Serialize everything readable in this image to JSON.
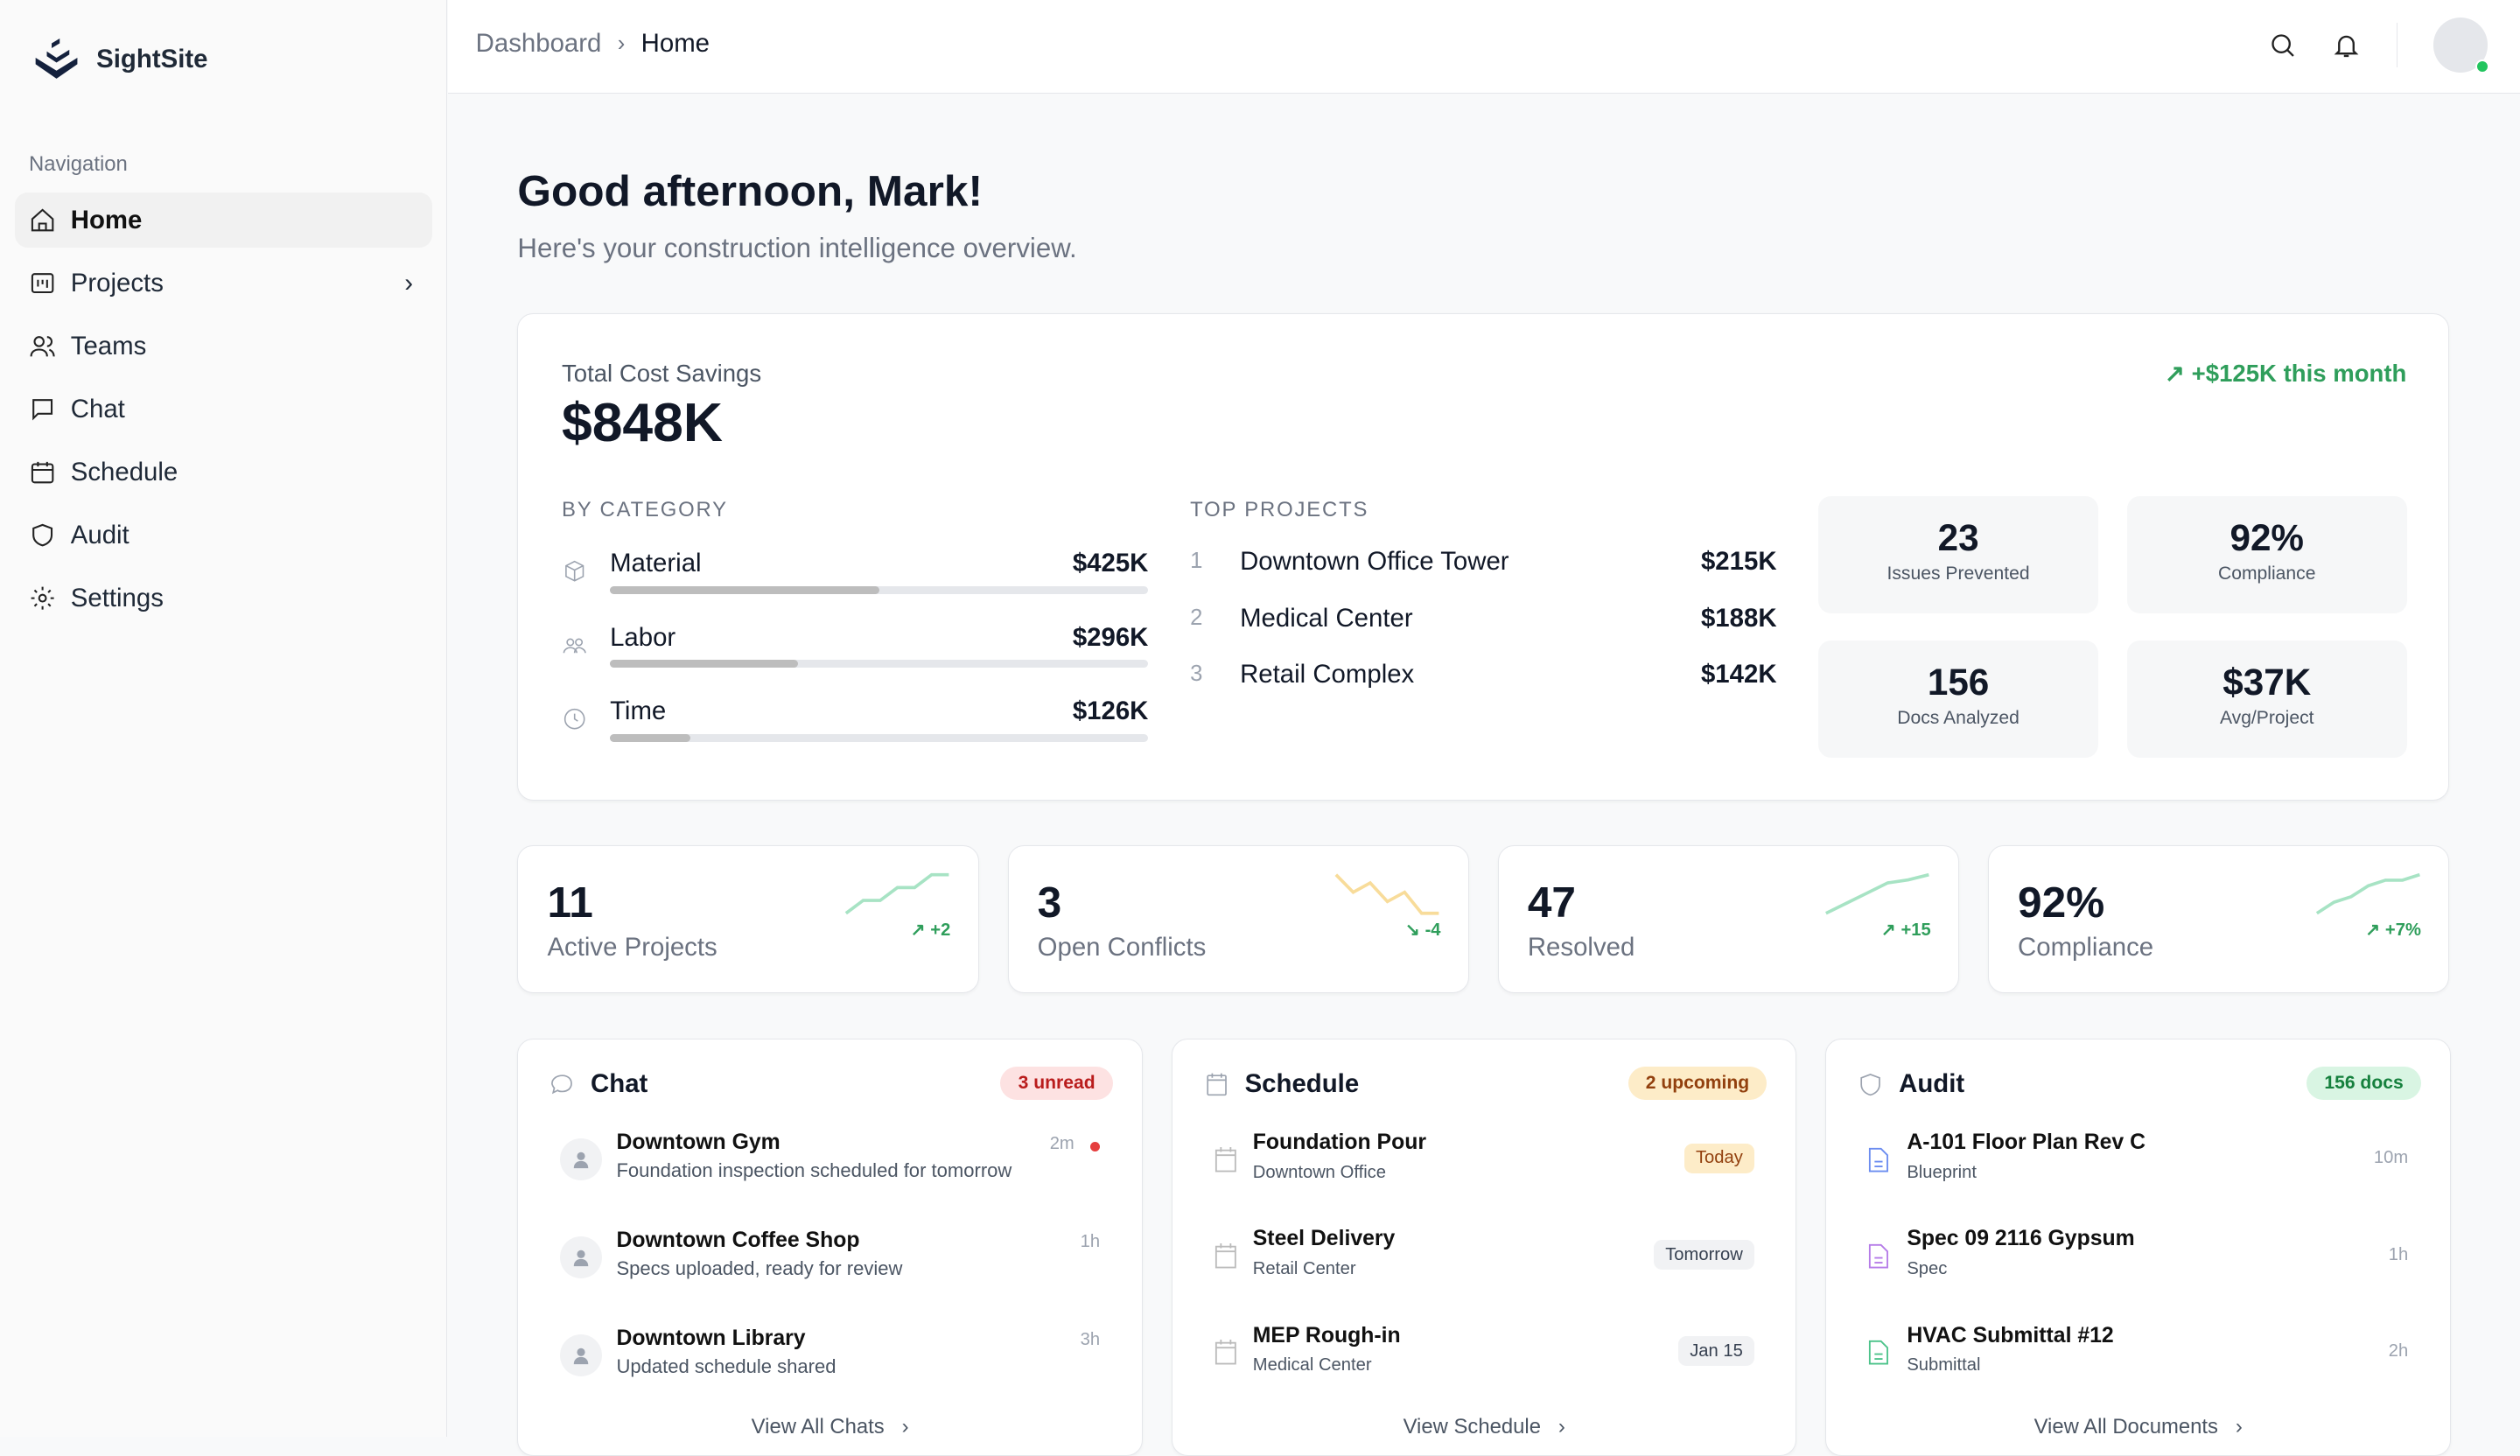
{
  "app": {
    "name": "SightSite"
  },
  "sidebar": {
    "label": "Navigation",
    "items": [
      {
        "label": "Home",
        "icon": "home-icon"
      },
      {
        "label": "Projects",
        "icon": "projects-icon"
      },
      {
        "label": "Teams",
        "icon": "users-icon"
      },
      {
        "label": "Chat",
        "icon": "chat-icon"
      },
      {
        "label": "Schedule",
        "icon": "calendar-icon"
      },
      {
        "label": "Audit",
        "icon": "shield-icon"
      },
      {
        "label": "Settings",
        "icon": "gear-icon"
      }
    ]
  },
  "breadcrumb": {
    "parent": "Dashboard",
    "current": "Home"
  },
  "greeting": {
    "title": "Good afternoon, Mark!",
    "subtitle": "Here's your construction intelligence overview."
  },
  "savings": {
    "label": "Total Cost Savings",
    "value": "$848K",
    "change": "+$125K this month",
    "category_title": "BY CATEGORY",
    "categories": [
      {
        "name": "Material",
        "value": "$425K",
        "fill": 0.5
      },
      {
        "name": "Labor",
        "value": "$296K",
        "fill": 0.35
      },
      {
        "name": "Time",
        "value": "$126K",
        "fill": 0.15
      }
    ],
    "projects_title": "TOP PROJECTS",
    "projects": [
      {
        "rank": "1",
        "name": "Downtown Office Tower",
        "value": "$215K"
      },
      {
        "rank": "2",
        "name": "Medical Center",
        "value": "$188K"
      },
      {
        "rank": "3",
        "name": "Retail Complex",
        "value": "$142K"
      }
    ],
    "metrics": [
      {
        "value": "23",
        "label": "Issues Prevented"
      },
      {
        "value": "92%",
        "label": "Compliance"
      },
      {
        "value": "156",
        "label": "Docs Analyzed"
      },
      {
        "value": "$37K",
        "label": "Avg/Project"
      }
    ]
  },
  "stats": [
    {
      "value": "11",
      "label": "Active Projects",
      "delta": "+2",
      "color": "#a7e3c4",
      "trend": [
        1,
        2,
        2,
        3,
        3,
        4,
        4
      ]
    },
    {
      "value": "3",
      "label": "Open Conflicts",
      "delta": "-4",
      "color": "#f8dc9a",
      "trend": [
        4,
        2.5,
        3.3,
        1.7,
        2.5,
        0.7,
        0.7
      ]
    },
    {
      "value": "47",
      "label": "Resolved",
      "delta": "+15",
      "color": "#a7e3c4",
      "trend": [
        1,
        2,
        3,
        4,
        4.3,
        4.8
      ]
    },
    {
      "value": "92%",
      "label": "Compliance",
      "delta": "+7%",
      "color": "#a7e3c4",
      "trend": [
        1,
        2,
        2.5,
        3.5,
        4,
        4,
        4.5
      ]
    }
  ],
  "chat": {
    "title": "Chat",
    "badge": "3 unread",
    "footer": "View All Chats",
    "items": [
      {
        "name": "Downtown Gym",
        "text": "Foundation inspection scheduled for tomorrow",
        "time": "2m",
        "unread": true
      },
      {
        "name": "Downtown Coffee Shop",
        "text": "Specs uploaded, ready for review",
        "time": "1h"
      },
      {
        "name": "Downtown Library",
        "text": "Updated schedule shared",
        "time": "3h"
      }
    ]
  },
  "schedule": {
    "title": "Schedule",
    "badge": "2 upcoming",
    "footer": "View Schedule",
    "items": [
      {
        "name": "Foundation Pour",
        "place": "Downtown Office",
        "when": "Today"
      },
      {
        "name": "Steel Delivery",
        "place": "Retail Center",
        "when": "Tomorrow"
      },
      {
        "name": "MEP Rough-in",
        "place": "Medical Center",
        "when": "Jan 15"
      }
    ]
  },
  "audit": {
    "title": "Audit",
    "badge": "156 docs",
    "footer": "View All Documents",
    "items": [
      {
        "name": "A-101 Floor Plan Rev C",
        "type": "Blueprint",
        "time": "10m",
        "color": "#6b8cf0"
      },
      {
        "name": "Spec 09 2116 Gypsum",
        "type": "Spec",
        "time": "1h",
        "color": "#b57be8"
      },
      {
        "name": "HVAC Submittal #12",
        "type": "Submittal",
        "time": "2h",
        "color": "#4cc38a"
      }
    ]
  }
}
